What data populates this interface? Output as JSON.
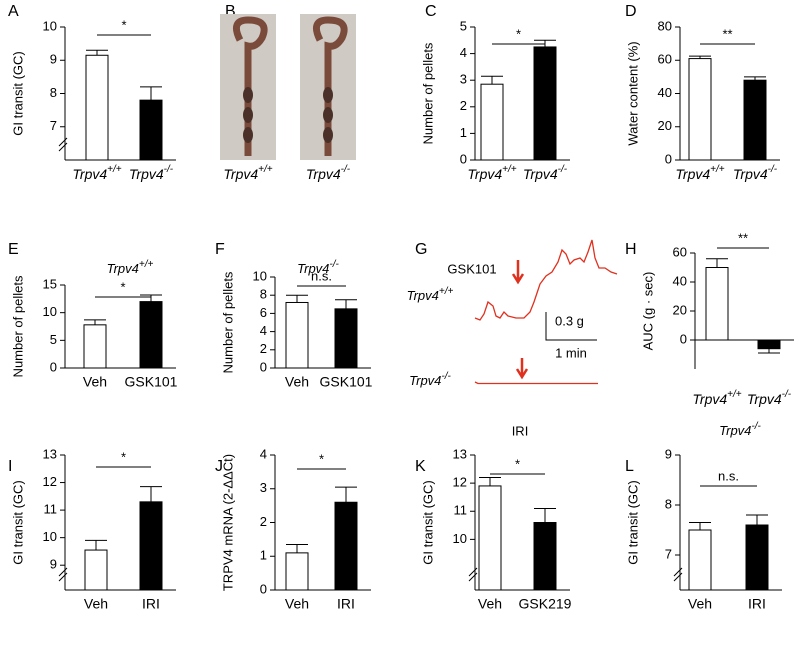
{
  "chart_data": [
    {
      "panel": "A",
      "type": "bar",
      "ylabel": "GI transit (GC)",
      "categories": [
        "Trpv4+/+",
        "Trpv4-/-"
      ],
      "values": [
        9.15,
        7.8
      ],
      "errors": [
        0.15,
        0.4
      ],
      "colors": [
        "#ffffff",
        "#000000"
      ],
      "ylim": [
        6,
        10
      ],
      "yticks": [
        7,
        8,
        9,
        10
      ],
      "axis_break": true,
      "annotation": "*"
    },
    {
      "panel": "B",
      "type": "image",
      "labels": [
        "Trpv4+/+",
        "Trpv4-/-"
      ]
    },
    {
      "panel": "C",
      "type": "bar",
      "ylabel": "Number of pellets",
      "categories": [
        "Trpv4+/+",
        "Trpv4-/-"
      ],
      "values": [
        2.85,
        4.25
      ],
      "errors": [
        0.3,
        0.25
      ],
      "colors": [
        "#ffffff",
        "#000000"
      ],
      "ylim": [
        0,
        5
      ],
      "yticks": [
        0,
        1,
        2,
        3,
        4,
        5
      ],
      "annotation": "*"
    },
    {
      "panel": "D",
      "type": "bar",
      "ylabel": "Water content (%)",
      "categories": [
        "Trpv4+/+",
        "Trpv4-/-"
      ],
      "values": [
        61,
        48
      ],
      "errors": [
        1.5,
        2
      ],
      "colors": [
        "#ffffff",
        "#000000"
      ],
      "ylim": [
        0,
        80
      ],
      "yticks": [
        0,
        20,
        40,
        60,
        80
      ],
      "annotation": "**"
    },
    {
      "panel": "E",
      "type": "bar",
      "title": "Trpv4+/+",
      "ylabel": "Number of pellets",
      "categories": [
        "Veh",
        "GSK101"
      ],
      "values": [
        7.8,
        12
      ],
      "errors": [
        0.9,
        1.2
      ],
      "colors": [
        "#ffffff",
        "#000000"
      ],
      "ylim": [
        0,
        15
      ],
      "yticks": [
        0,
        5,
        10,
        15
      ],
      "annotation": "*"
    },
    {
      "panel": "F",
      "type": "bar",
      "title": "Trpv4-/-",
      "ylabel": "Number of pellets",
      "categories": [
        "Veh",
        "GSK101"
      ],
      "values": [
        7.2,
        6.5
      ],
      "errors": [
        0.8,
        1.0
      ],
      "colors": [
        "#ffffff",
        "#000000"
      ],
      "ylim": [
        0,
        10
      ],
      "yticks": [
        0,
        2,
        4,
        6,
        8,
        10
      ],
      "annotation": "n.s."
    },
    {
      "panel": "G",
      "type": "trace",
      "stimulus": "GSK101",
      "labels": [
        "Trpv4+/+",
        "Trpv4-/-"
      ],
      "scale_y": "0.3 g",
      "scale_x": "1 min"
    },
    {
      "panel": "H",
      "type": "bar",
      "ylabel": "AUC (g · sec)",
      "categories": [
        "Trpv4+/+",
        "Trpv4-/-"
      ],
      "values": [
        50,
        -6
      ],
      "errors": [
        6,
        3
      ],
      "colors": [
        "#ffffff",
        "#000000"
      ],
      "ylim": [
        -20,
        60
      ],
      "yticks": [
        0,
        20,
        40,
        60
      ],
      "annotation": "**"
    },
    {
      "panel": "I",
      "type": "bar",
      "ylabel": "GI transit (GC)",
      "categories": [
        "Veh",
        "IRI"
      ],
      "values": [
        9.55,
        11.3
      ],
      "errors": [
        0.35,
        0.55
      ],
      "colors": [
        "#ffffff",
        "#000000"
      ],
      "ylim": [
        8.1,
        13
      ],
      "yticks": [
        9,
        10,
        11,
        12,
        13
      ],
      "axis_break": true,
      "annotation": "*"
    },
    {
      "panel": "J",
      "type": "bar",
      "ylabel": "TRPV4 mRNA (2-ΔΔCt)",
      "categories": [
        "Veh",
        "IRI"
      ],
      "values": [
        1.1,
        2.6
      ],
      "errors": [
        0.25,
        0.45
      ],
      "colors": [
        "#ffffff",
        "#000000"
      ],
      "ylim": [
        0,
        4
      ],
      "yticks": [
        0,
        1,
        2,
        3,
        4
      ],
      "annotation": "*"
    },
    {
      "panel": "K",
      "type": "bar",
      "title": "IRI",
      "ylabel": "GI transit (GC)",
      "categories": [
        "Veh",
        "GSK219"
      ],
      "values": [
        11.9,
        10.6
      ],
      "errors": [
        0.3,
        0.5
      ],
      "colors": [
        "#ffffff",
        "#000000"
      ],
      "ylim": [
        8.2,
        13
      ],
      "yticks": [
        10,
        11,
        12,
        13
      ],
      "axis_break": true,
      "annotation": "*"
    },
    {
      "panel": "L",
      "type": "bar",
      "title": "Trpv4-/-",
      "ylabel": "GI transit (GC)",
      "categories": [
        "Veh",
        "IRI"
      ],
      "values": [
        7.5,
        7.6
      ],
      "errors": [
        0.15,
        0.2
      ],
      "colors": [
        "#ffffff",
        "#000000"
      ],
      "ylim": [
        6.3,
        9
      ],
      "yticks": [
        7,
        8,
        9
      ],
      "axis_break": true,
      "annotation": "n.s."
    }
  ]
}
